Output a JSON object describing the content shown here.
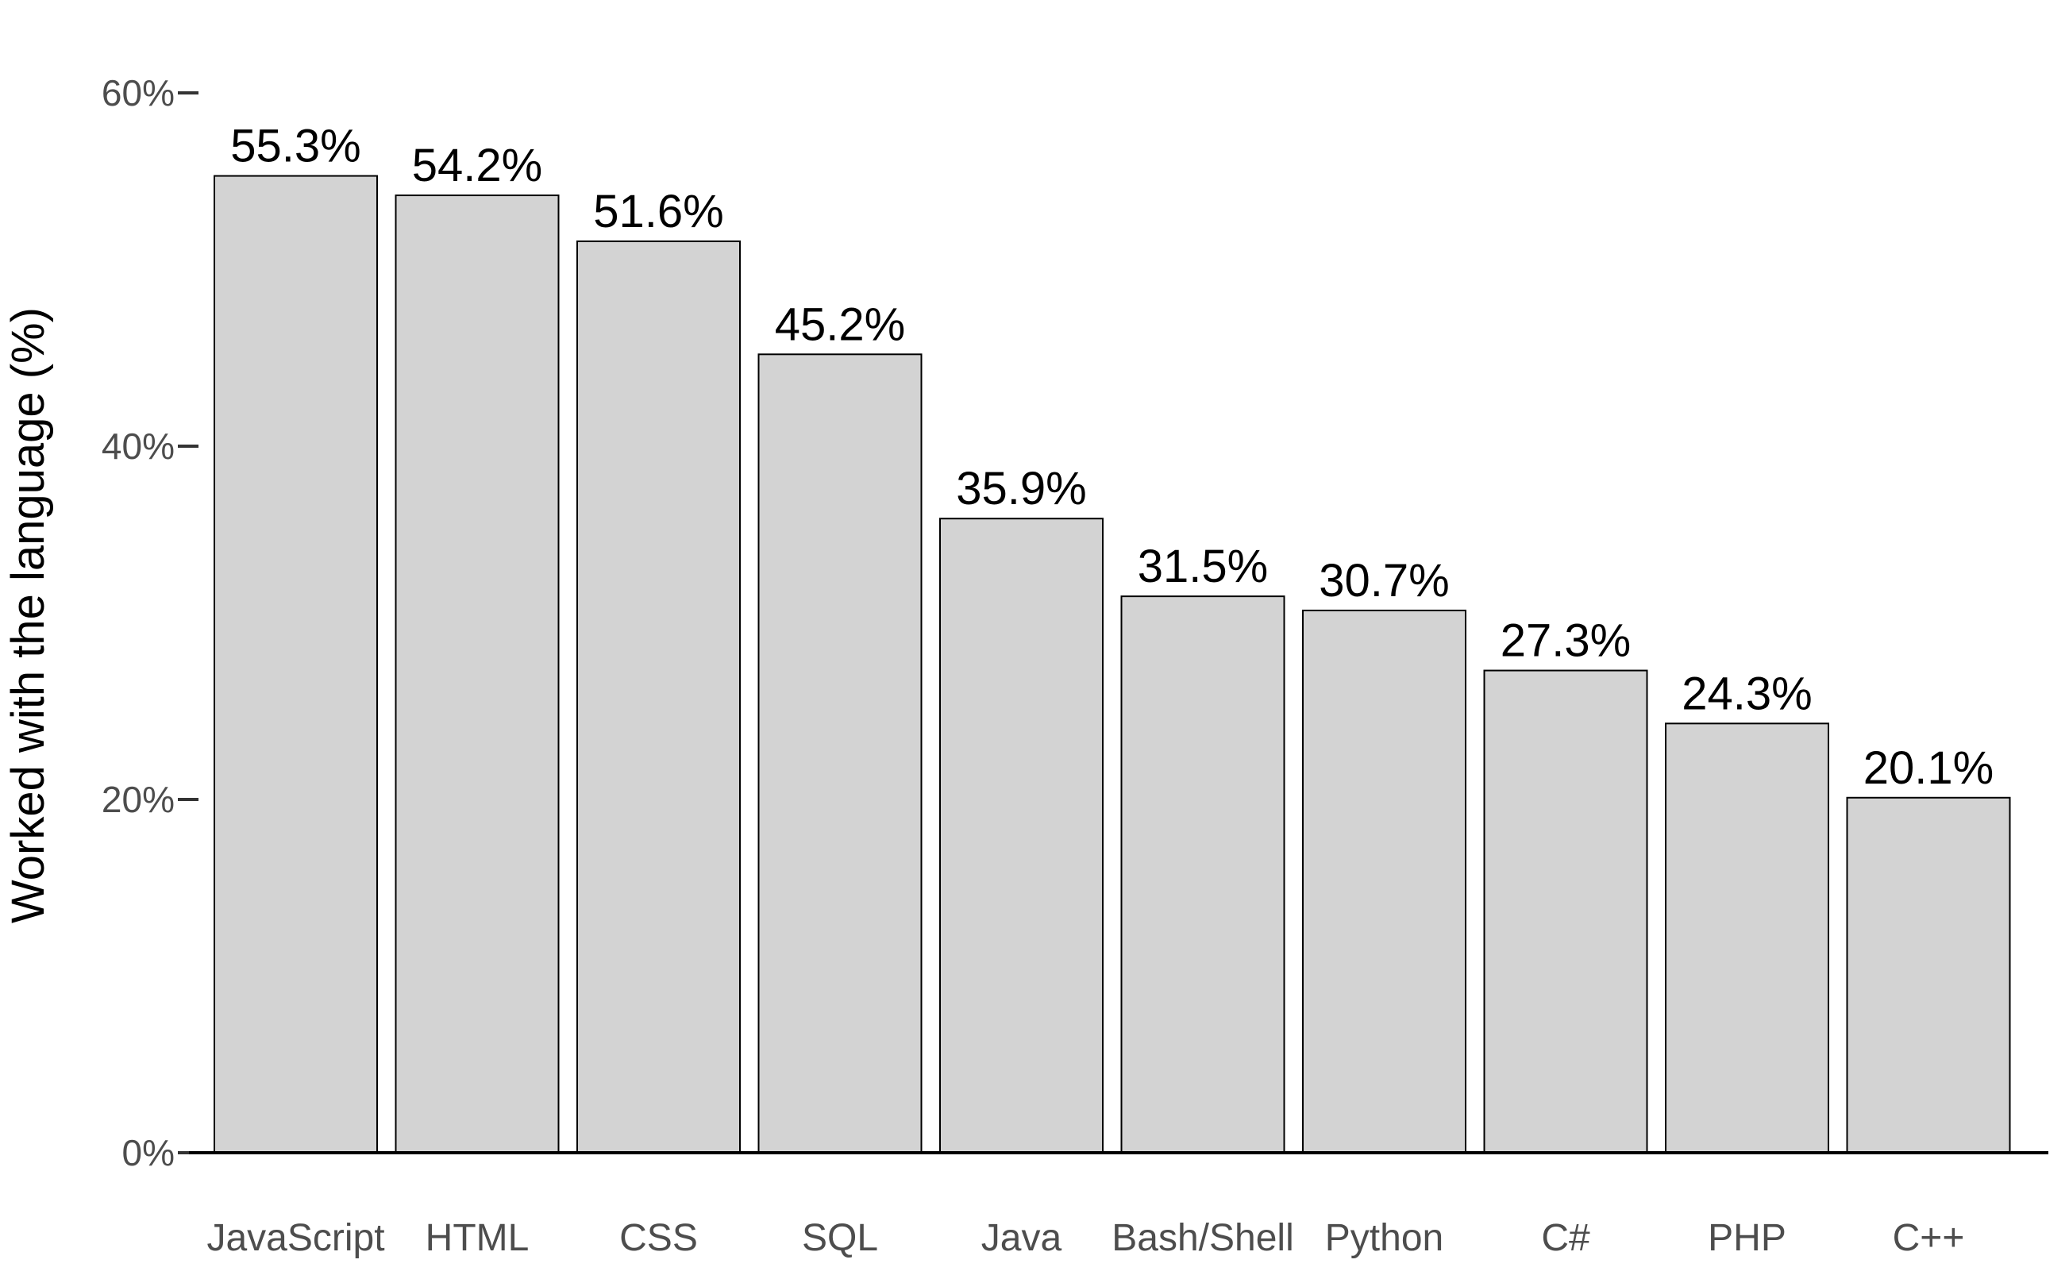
{
  "chart_data": {
    "type": "bar",
    "categories": [
      "JavaScript",
      "HTML",
      "CSS",
      "SQL",
      "Java",
      "Bash/Shell",
      "Python",
      "C#",
      "PHP",
      "C++"
    ],
    "values": [
      55.3,
      54.2,
      51.6,
      45.2,
      35.9,
      31.5,
      30.7,
      27.3,
      24.3,
      20.1
    ],
    "data_labels": [
      "55.3%",
      "54.2%",
      "51.6%",
      "45.2%",
      "35.9%",
      "31.5%",
      "30.7%",
      "27.3%",
      "24.3%",
      "20.1%"
    ],
    "title": "",
    "xlabel": "",
    "ylabel": "Worked with the language (%)",
    "ylim": [
      0,
      60
    ],
    "yticks": [
      0,
      20,
      40,
      60
    ],
    "ytick_labels": [
      "0%",
      "20%",
      "40%",
      "60%"
    ],
    "grid": false,
    "legend": "none",
    "bar_fill": "#d3d3d3",
    "bar_stroke": "#000000"
  }
}
